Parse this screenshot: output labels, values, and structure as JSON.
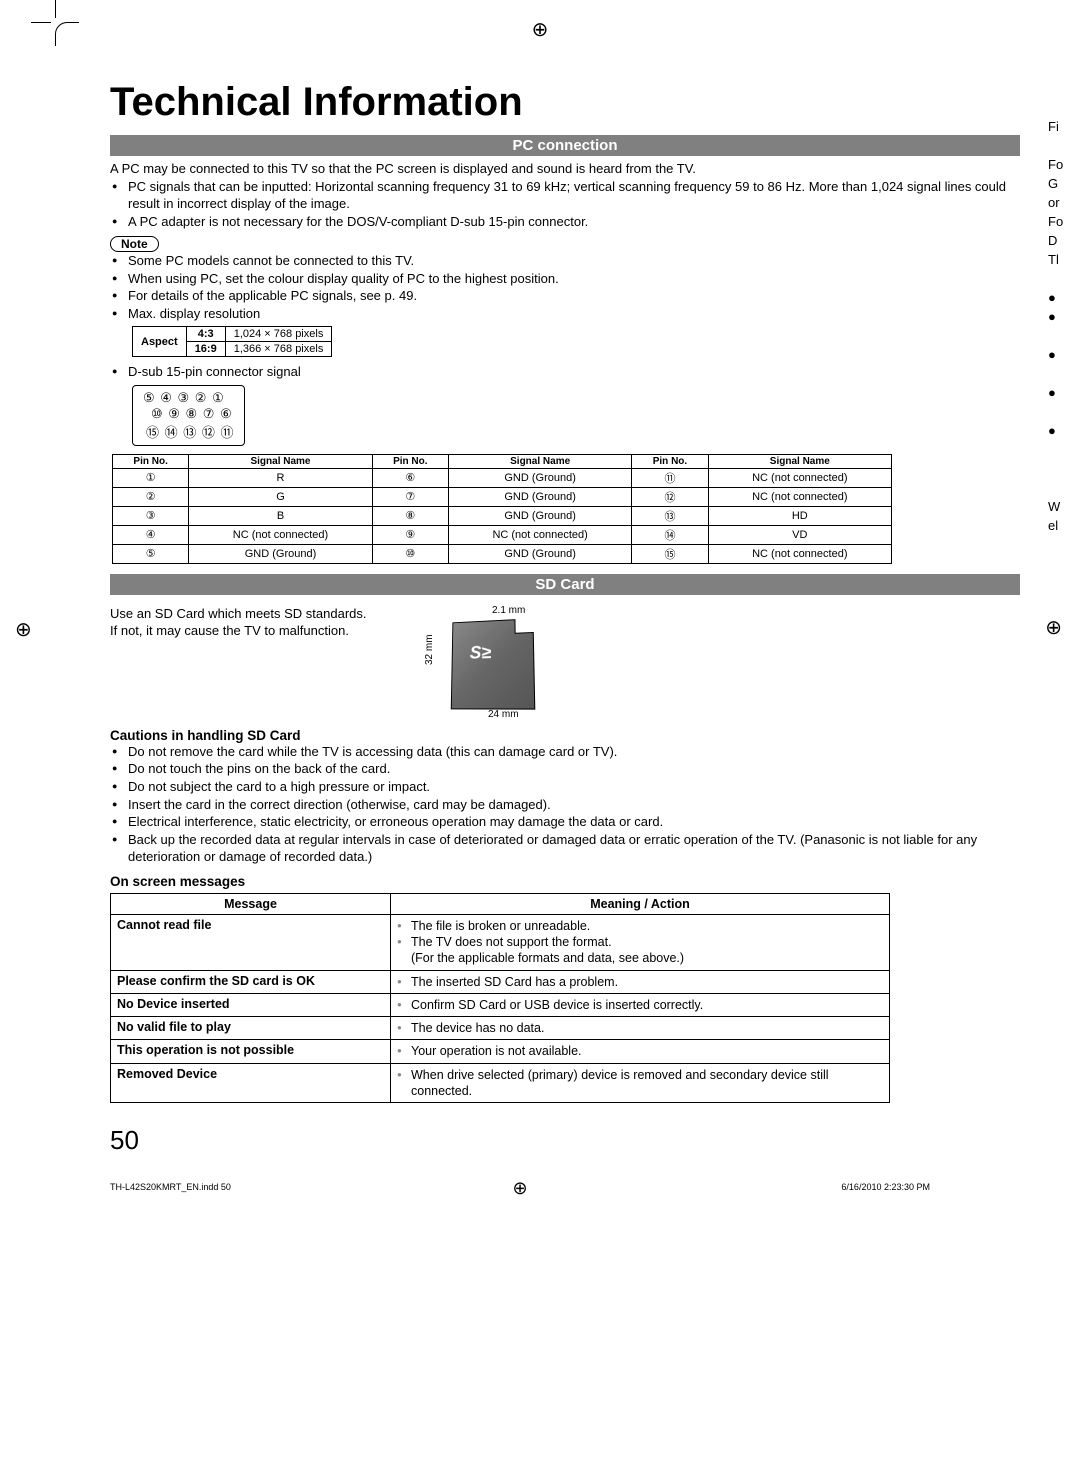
{
  "page": {
    "title": "Technical Information",
    "number": "50",
    "footer_left": "TH-L42S20KMRT_EN.indd   50",
    "footer_right": "6/16/2010   2:23:30 PM"
  },
  "pc": {
    "heading": "PC connection",
    "intro": "A PC may be connected to this TV so that the PC screen is displayed and sound is heard from the TV.",
    "bullets": [
      "PC signals that can be inputted: Horizontal scanning frequency 31 to 69 kHz; vertical scanning frequency 59 to 86 Hz. More than 1,024 signal lines could result in incorrect display of the image.",
      "A PC adapter is not necessary for the DOS/V-compliant D-sub 15-pin connector."
    ],
    "note_label": "Note",
    "note_bullets": [
      "Some PC models cannot be connected to this TV.",
      "When using PC, set the colour display quality of PC to the highest position.",
      "For details of the applicable PC signals, see p. 49.",
      "Max. display resolution"
    ],
    "aspect": {
      "header": "Aspect",
      "rows": [
        {
          "ratio": "4:3",
          "res": "1,024 × 768 pixels"
        },
        {
          "ratio": "16:9",
          "res": "1,366 × 768 pixels"
        }
      ]
    },
    "dsub_label": "D-sub 15-pin connector signal",
    "dsub_rows": [
      "⑤ ④ ③ ② ①",
      "⑩ ⑨ ⑧ ⑦ ⑥",
      "⑮ ⑭ ⑬ ⑫ ⑪"
    ],
    "pin_headers": [
      "Pin No.",
      "Signal Name",
      "Pin No.",
      "Signal Name",
      "Pin No.",
      "Signal Name"
    ],
    "pin_rows": [
      [
        "①",
        "R",
        "⑥",
        "GND (Ground)",
        "⑪",
        "NC (not connected)"
      ],
      [
        "②",
        "G",
        "⑦",
        "GND (Ground)",
        "⑫",
        "NC (not connected)"
      ],
      [
        "③",
        "B",
        "⑧",
        "GND (Ground)",
        "⑬",
        "HD"
      ],
      [
        "④",
        "NC (not connected)",
        "⑨",
        "NC (not connected)",
        "⑭",
        "VD"
      ],
      [
        "⑤",
        "GND (Ground)",
        "⑩",
        "GND (Ground)",
        "⑮",
        "NC (not connected)"
      ]
    ]
  },
  "sd": {
    "heading": "SD Card",
    "text1": "Use an SD Card which meets SD standards.",
    "text2": "If not, it may cause the TV to malfunction.",
    "dims": {
      "top": "2.1 mm",
      "left": "32 mm",
      "bottom": "24 mm",
      "logo": "S≥"
    },
    "cautions_heading": "Cautions in handling SD Card",
    "cautions": [
      "Do not remove the card while the TV is accessing data (this can damage card or TV).",
      "Do not touch the pins on the back of the card.",
      "Do not subject the card to a high pressure or impact.",
      "Insert the card in the correct direction (otherwise, card may be damaged).",
      "Electrical interference, static electricity, or erroneous operation may damage the data or card.",
      "Back up the recorded data at regular intervals in case of deteriorated or damaged data or erratic operation of the TV. (Panasonic is not liable for any deterioration or damage of recorded data.)"
    ],
    "messages_heading": "On screen messages",
    "msg_headers": [
      "Message",
      "Meaning / Action"
    ],
    "messages": [
      {
        "m": "Cannot read file",
        "a": [
          "The file is broken or unreadable.",
          "The TV does not support the format.\n(For the applicable formats and data, see above.)"
        ]
      },
      {
        "m": "Please confirm the SD card is OK",
        "a": [
          "The inserted SD Card has a problem."
        ]
      },
      {
        "m": "No Device inserted",
        "a": [
          "Confirm SD Card or USB device is inserted correctly."
        ]
      },
      {
        "m": "No valid file to play",
        "a": [
          "The device has no data."
        ]
      },
      {
        "m": "This operation is not possible",
        "a": [
          "Your operation is not available."
        ]
      },
      {
        "m": "Removed Device",
        "a": [
          "When drive selected (primary) device is removed and secondary device still connected."
        ]
      }
    ]
  },
  "right_fragments": [
    "Fi",
    "",
    "Fo",
    "G",
    "or",
    "Fo",
    "D",
    "Tl",
    "",
    "●",
    "●",
    "",
    "●",
    "",
    "●",
    "",
    "●",
    "",
    "",
    "",
    "W",
    "el"
  ]
}
